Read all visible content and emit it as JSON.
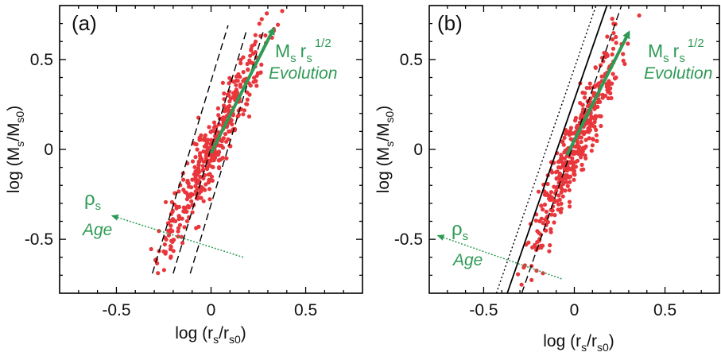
{
  "colors": {
    "points": "#e8363b",
    "annotation": "#2e9a55",
    "lines": "#000000",
    "frame": "#000000"
  },
  "chart_data": [
    {
      "type": "scatter",
      "panel_label": "(a)",
      "xlabel": {
        "pre": "log (r",
        "sub1": "s",
        "mid": "/r",
        "sub2": "s0",
        "post": ")"
      },
      "ylabel": {
        "pre": "log (M",
        "sub1": "s",
        "mid": "/M",
        "sub2": "s0",
        "post": ")"
      },
      "xlim": [
        -0.8,
        0.8
      ],
      "ylim": [
        -0.8,
        0.8
      ],
      "xticks": [
        -0.5,
        0,
        0.5
      ],
      "xtick_labels": [
        "-0.5",
        "0",
        "0.5"
      ],
      "yticks": [
        -0.5,
        0,
        0.5
      ],
      "ytick_labels": [
        "-0.5",
        "0",
        "0.5"
      ],
      "grid": false,
      "point_cloud": {
        "n": 420,
        "x_mean": 0.0,
        "x_sd": 0.14,
        "relation_slope": 2.0,
        "scatter_sd": 0.1,
        "x_range": [
          -0.33,
          0.42
        ]
      },
      "lines": [
        {
          "style": "dashed",
          "x": [
            -0.31,
            0.09
          ],
          "y": [
            -0.69,
            0.69
          ]
        },
        {
          "style": "dashed",
          "x": [
            -0.2,
            0.19
          ],
          "y": [
            -0.69,
            0.67
          ]
        },
        {
          "style": "dashed",
          "x": [
            -0.11,
            0.28
          ],
          "y": [
            -0.69,
            0.67
          ]
        }
      ],
      "arrows": [
        {
          "style": "solid-thick",
          "from": [
            0.0,
            -0.02
          ],
          "to": [
            0.33,
            0.67
          ]
        },
        {
          "style": "dotted",
          "from": [
            0.17,
            -0.6
          ],
          "to": [
            -0.52,
            -0.37
          ]
        }
      ],
      "annotations": {
        "growth": {
          "m": "M",
          "m_sub": "s",
          "r": "r",
          "r_sub": "s",
          "exp": "1/2",
          "word": "Evolution",
          "at": [
            0.35,
            0.52
          ]
        },
        "density": {
          "rho": "ρ",
          "rho_sub": "s",
          "word": "Age",
          "at": [
            -0.6,
            -0.3
          ]
        }
      }
    },
    {
      "type": "scatter",
      "panel_label": "(b)",
      "xlabel": {
        "pre": "log (r",
        "sub1": "s",
        "mid": "/r",
        "sub2": "s0",
        "post": ")"
      },
      "ylabel": {
        "pre": "log (M",
        "sub1": "s",
        "mid": "/M",
        "sub2": "s0",
        "post": ")"
      },
      "xlim": [
        -0.8,
        0.8
      ],
      "ylim": [
        -0.8,
        0.8
      ],
      "xticks": [
        -0.5,
        0,
        0.5
      ],
      "xtick_labels": [
        "-0.5",
        "0",
        "0.5"
      ],
      "yticks": [
        -0.5,
        0,
        0.5
      ],
      "ytick_labels": [
        "-0.5",
        "0",
        "0.5"
      ],
      "grid": false,
      "point_cloud": {
        "n": 420,
        "x_mean": 0.0,
        "x_sd": 0.13,
        "relation_slope": 2.3,
        "scatter_sd": 0.1,
        "x_range": [
          -0.35,
          0.4
        ]
      },
      "lines": [
        {
          "style": "dotted",
          "x": [
            -0.43,
            0.12
          ],
          "y": [
            -0.8,
            0.8
          ]
        },
        {
          "style": "solid",
          "x": [
            -0.37,
            0.18
          ],
          "y": [
            -0.8,
            0.8
          ]
        },
        {
          "style": "dashed",
          "x": [
            -0.29,
            0.26
          ],
          "y": [
            -0.8,
            0.8
          ]
        }
      ],
      "arrows": [
        {
          "style": "solid-thick",
          "from": [
            -0.04,
            -0.03
          ],
          "to": [
            0.3,
            0.65
          ]
        },
        {
          "style": "dotted",
          "from": [
            -0.07,
            -0.72
          ],
          "to": [
            -0.75,
            -0.48
          ]
        }
      ],
      "annotations": {
        "growth": {
          "m": "M",
          "m_sub": "s",
          "r": "r",
          "r_sub": "s",
          "exp": "1/2",
          "word": "Evolution",
          "at": [
            0.35,
            0.52
          ]
        },
        "density": {
          "rho": "ρ",
          "rho_sub": "s",
          "word": "Age",
          "at": [
            -0.7,
            -0.5
          ]
        }
      }
    }
  ]
}
